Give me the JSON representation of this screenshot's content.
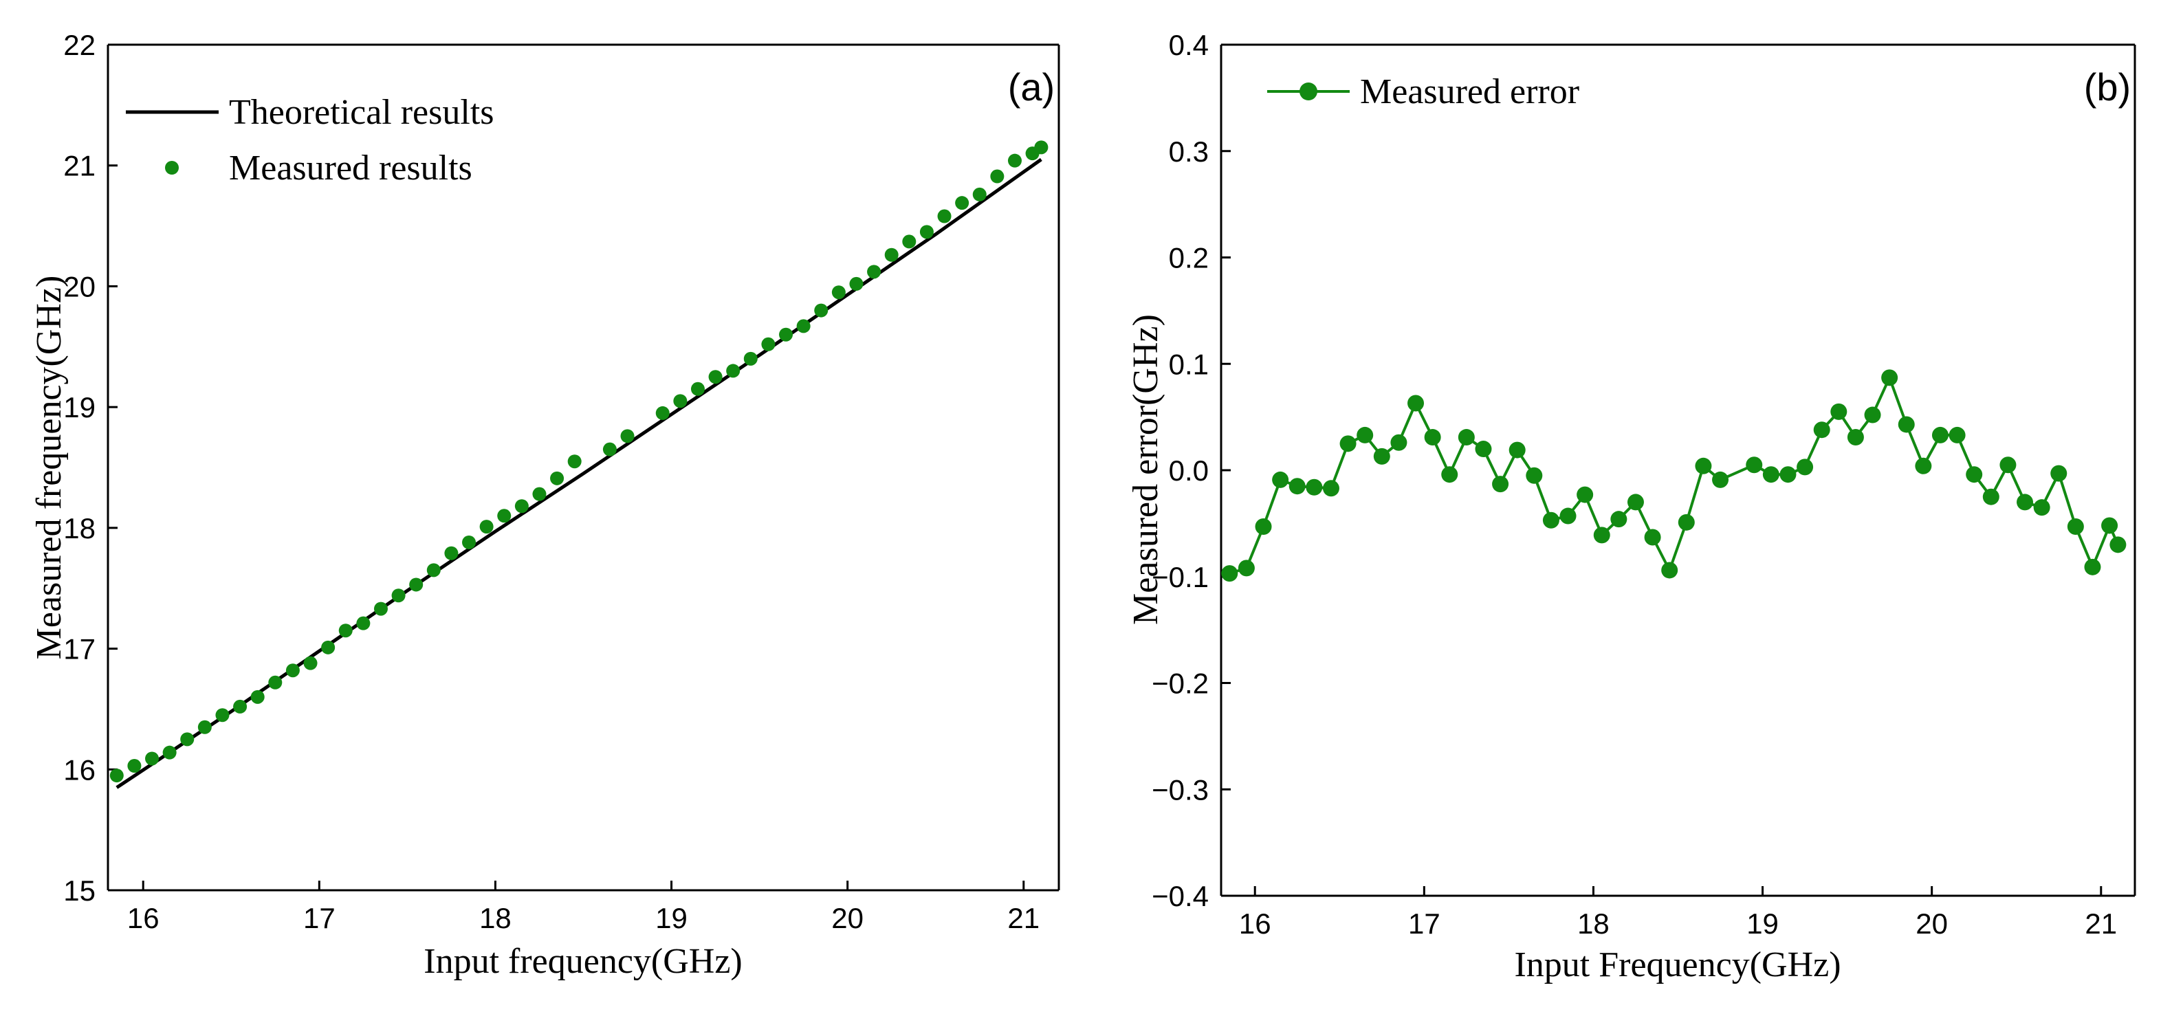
{
  "chart_data": [
    {
      "type": "scatter",
      "panel_label": "(a)",
      "xlabel": "Input frequency(GHz)",
      "ylabel": "Measured frequency(GHz)",
      "xlim": [
        15.8,
        21.2
      ],
      "ylim": [
        15,
        22
      ],
      "xticks": [
        16,
        17,
        18,
        19,
        20,
        21
      ],
      "yticks": [
        15,
        16,
        17,
        18,
        19,
        20,
        21,
        22
      ],
      "grid": false,
      "legend_position": "top-left",
      "series": [
        {
          "name": "Theoretical results",
          "kind": "line",
          "color": "#000000",
          "x": [
            15.85,
            16.5,
            17.0,
            17.5,
            18.0,
            18.5,
            19.0,
            19.5,
            20.0,
            20.5,
            21.1
          ],
          "y": [
            15.85,
            16.48,
            16.98,
            17.48,
            17.97,
            18.45,
            18.94,
            19.43,
            19.93,
            20.43,
            21.05
          ]
        },
        {
          "name": "Measured results",
          "kind": "points",
          "color": "#128a12",
          "x": [
            15.85,
            15.95,
            16.05,
            16.15,
            16.25,
            16.35,
            16.45,
            16.55,
            16.65,
            16.75,
            16.85,
            16.95,
            17.05,
            17.15,
            17.25,
            17.35,
            17.45,
            17.55,
            17.65,
            17.75,
            17.85,
            17.95,
            18.05,
            18.15,
            18.25,
            18.35,
            18.45,
            18.65,
            18.75,
            18.95,
            19.05,
            19.15,
            19.25,
            19.35,
            19.45,
            19.55,
            19.65,
            19.75,
            19.85,
            19.95,
            20.05,
            20.15,
            20.25,
            20.35,
            20.45,
            20.55,
            20.65,
            20.75,
            20.85,
            20.95,
            21.05,
            21.1
          ],
          "y": [
            15.95,
            16.03,
            16.09,
            16.14,
            16.25,
            16.35,
            16.45,
            16.52,
            16.6,
            16.72,
            16.82,
            16.88,
            17.01,
            17.15,
            17.21,
            17.33,
            17.44,
            17.53,
            17.65,
            17.79,
            17.88,
            18.01,
            18.1,
            18.18,
            18.28,
            18.41,
            18.55,
            18.65,
            18.76,
            18.95,
            19.05,
            19.15,
            19.25,
            19.3,
            19.4,
            19.52,
            19.6,
            19.67,
            19.8,
            19.95,
            20.02,
            20.12,
            20.26,
            20.37,
            20.45,
            20.58,
            20.69,
            20.76,
            20.91,
            21.04,
            21.1,
            21.15
          ]
        }
      ]
    },
    {
      "type": "line",
      "panel_label": "(b)",
      "xlabel": "Input Frequency(GHz)",
      "ylabel": "Measured error(GHz)",
      "xlim": [
        15.8,
        21.2
      ],
      "ylim": [
        -0.4,
        0.4
      ],
      "xticks": [
        16,
        17,
        18,
        19,
        20,
        21
      ],
      "yticks": [
        -0.4,
        -0.3,
        -0.2,
        -0.1,
        0.0,
        0.1,
        0.2,
        0.3,
        0.4
      ],
      "ytick_labels": [
        "−0.4",
        "−0.3",
        "−0.2",
        "−0.1",
        "0.0",
        "0.1",
        "0.2",
        "0.3",
        "0.4"
      ],
      "grid": false,
      "legend_position": "top-left",
      "series": [
        {
          "name": "Measured error",
          "kind": "line-markers",
          "color": "#128a12",
          "x": [
            15.85,
            15.95,
            16.05,
            16.15,
            16.25,
            16.35,
            16.45,
            16.55,
            16.65,
            16.75,
            16.85,
            16.95,
            17.05,
            17.15,
            17.25,
            17.35,
            17.45,
            17.55,
            17.65,
            17.75,
            17.85,
            17.95,
            18.05,
            18.15,
            18.25,
            18.35,
            18.45,
            18.55,
            18.65,
            18.75,
            18.95,
            19.05,
            19.15,
            19.25,
            19.35,
            19.45,
            19.55,
            19.65,
            19.75,
            19.85,
            19.95,
            20.05,
            20.15,
            20.25,
            20.35,
            20.45,
            20.55,
            20.65,
            20.75,
            20.85,
            20.95,
            21.05,
            21.1
          ],
          "y": [
            -0.097,
            -0.092,
            -0.053,
            -0.009,
            -0.015,
            -0.016,
            -0.017,
            0.025,
            0.033,
            0.013,
            0.026,
            0.063,
            0.031,
            -0.004,
            0.031,
            0.02,
            -0.013,
            0.019,
            -0.005,
            -0.047,
            -0.043,
            -0.023,
            -0.061,
            -0.046,
            -0.03,
            -0.063,
            -0.094,
            -0.049,
            0.004,
            -0.009,
            0.005,
            -0.004,
            -0.004,
            0.003,
            0.038,
            0.055,
            0.031,
            0.052,
            0.087,
            0.043,
            0.004,
            0.033,
            0.033,
            -0.004,
            -0.025,
            0.005,
            -0.03,
            -0.035,
            -0.003,
            -0.053,
            -0.091,
            -0.052,
            -0.07
          ]
        }
      ]
    }
  ]
}
